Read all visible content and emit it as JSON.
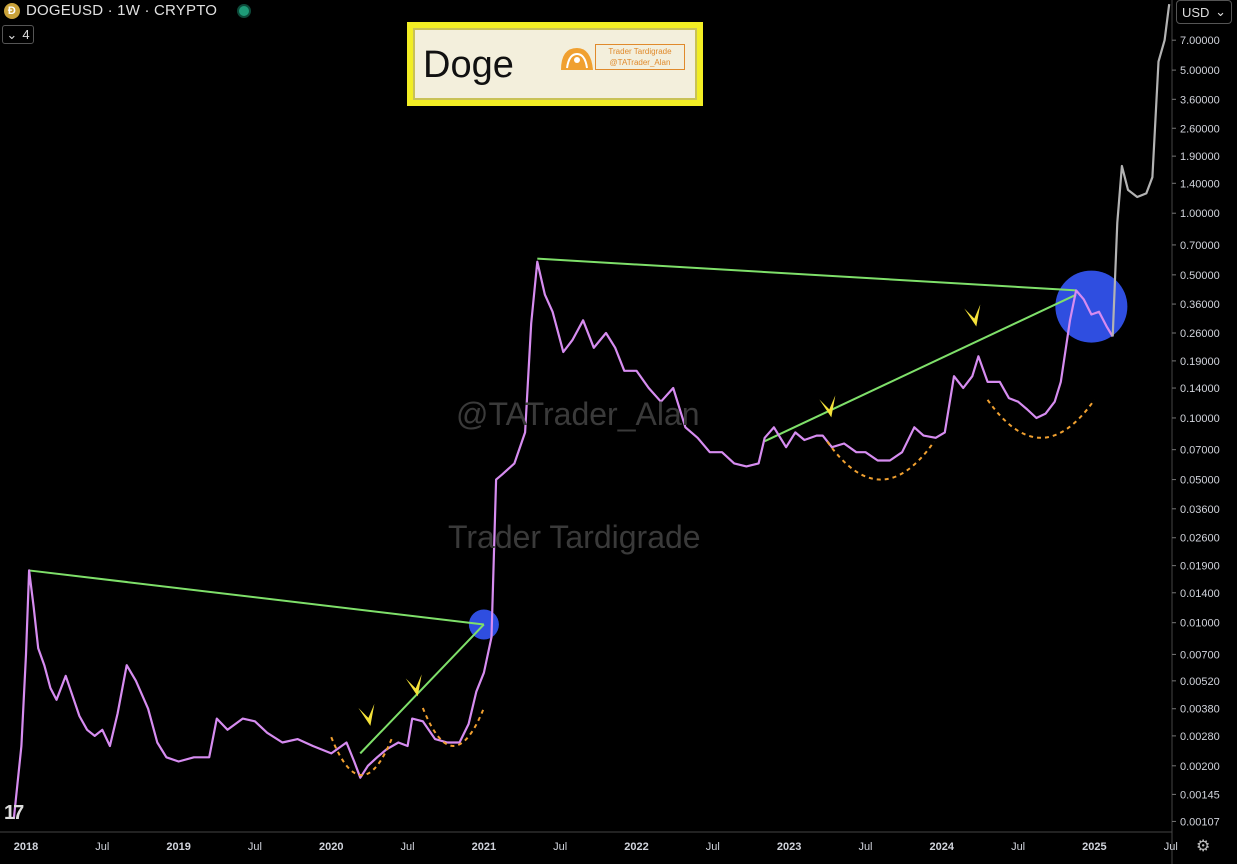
{
  "header": {
    "title": "DOGEUSD · 1W · CRYPTO",
    "collapse_count": "4",
    "currency": "USD"
  },
  "logo": {
    "title": "Doge",
    "tag_line1": "Trader Tardigrade",
    "tag_line2": "@TATrader_Alan"
  },
  "watermarks": {
    "handle": "@TATrader_Alan",
    "name": "Trader Tardigrade"
  },
  "badge": "17",
  "colors": {
    "price": "#d68cf0",
    "projection": "#b3b3b3",
    "trend": "#7fe06a",
    "arc": "#f0a030",
    "circle": "#2f4ee0",
    "arrow": "#f5e23a"
  },
  "chart_data": {
    "type": "line",
    "scale": "log",
    "ylim": [
      0.00095,
      11
    ],
    "xlim": [
      2018.0,
      2025.6
    ],
    "y_ticks": [
      "7.00000",
      "5.00000",
      "3.60000",
      "2.60000",
      "1.90000",
      "1.40000",
      "1.00000",
      "0.70000",
      "0.50000",
      "0.36000",
      "0.26000",
      "0.19000",
      "0.14000",
      "0.10000",
      "0.07000",
      "0.05000",
      "0.03600",
      "0.02600",
      "0.01900",
      "0.01400",
      "0.01000",
      "0.00700",
      "0.00520",
      "0.00380",
      "0.00280",
      "0.00200",
      "0.00145",
      "0.00107"
    ],
    "x_ticks": [
      {
        "label": "2018",
        "x": 2018.0,
        "bold": true
      },
      {
        "label": "Jul",
        "x": 2018.5,
        "bold": false
      },
      {
        "label": "2019",
        "x": 2019.0,
        "bold": true
      },
      {
        "label": "Jul",
        "x": 2019.5,
        "bold": false
      },
      {
        "label": "2020",
        "x": 2020.0,
        "bold": true
      },
      {
        "label": "Jul",
        "x": 2020.5,
        "bold": false
      },
      {
        "label": "2021",
        "x": 2021.0,
        "bold": true
      },
      {
        "label": "Jul",
        "x": 2021.5,
        "bold": false
      },
      {
        "label": "2022",
        "x": 2022.0,
        "bold": true
      },
      {
        "label": "Jul",
        "x": 2022.5,
        "bold": false
      },
      {
        "label": "2023",
        "x": 2023.0,
        "bold": true
      },
      {
        "label": "Jul",
        "x": 2023.5,
        "bold": false
      },
      {
        "label": "2024",
        "x": 2024.0,
        "bold": true
      },
      {
        "label": "Jul",
        "x": 2024.5,
        "bold": false
      },
      {
        "label": "2025",
        "x": 2025.0,
        "bold": true
      },
      {
        "label": "Jul",
        "x": 2025.5,
        "bold": false
      }
    ],
    "series": [
      {
        "values": [
          [
            2017.92,
            0.0011
          ],
          [
            2017.97,
            0.0025
          ],
          [
            2018.0,
            0.007
          ],
          [
            2018.02,
            0.018
          ],
          [
            2018.05,
            0.012
          ],
          [
            2018.08,
            0.0075
          ],
          [
            2018.12,
            0.0062
          ],
          [
            2018.16,
            0.0048
          ],
          [
            2018.2,
            0.0042
          ],
          [
            2018.26,
            0.0055
          ],
          [
            2018.3,
            0.0045
          ],
          [
            2018.35,
            0.0035
          ],
          [
            2018.4,
            0.003
          ],
          [
            2018.45,
            0.0028
          ],
          [
            2018.5,
            0.003
          ],
          [
            2018.55,
            0.0025
          ],
          [
            2018.6,
            0.0036
          ],
          [
            2018.66,
            0.0062
          ],
          [
            2018.72,
            0.0052
          ],
          [
            2018.8,
            0.0038
          ],
          [
            2018.86,
            0.0026
          ],
          [
            2018.92,
            0.0022
          ],
          [
            2019.0,
            0.0021
          ],
          [
            2019.1,
            0.0022
          ],
          [
            2019.2,
            0.0022
          ],
          [
            2019.25,
            0.0034
          ],
          [
            2019.32,
            0.003
          ],
          [
            2019.42,
            0.0034
          ],
          [
            2019.5,
            0.0033
          ],
          [
            2019.58,
            0.0029
          ],
          [
            2019.68,
            0.0026
          ],
          [
            2019.78,
            0.0027
          ],
          [
            2019.88,
            0.0025
          ],
          [
            2020.0,
            0.0023
          ],
          [
            2020.1,
            0.0026
          ],
          [
            2020.15,
            0.0021
          ],
          [
            2020.19,
            0.00175
          ],
          [
            2020.24,
            0.002
          ],
          [
            2020.3,
            0.0022
          ],
          [
            2020.36,
            0.0024
          ],
          [
            2020.44,
            0.0026
          ],
          [
            2020.5,
            0.0025
          ],
          [
            2020.53,
            0.0034
          ],
          [
            2020.6,
            0.0033
          ],
          [
            2020.68,
            0.0027
          ],
          [
            2020.76,
            0.0026
          ],
          [
            2020.84,
            0.0026
          ],
          [
            2020.9,
            0.0032
          ],
          [
            2020.95,
            0.0046
          ],
          [
            2021.0,
            0.0057
          ],
          [
            2021.05,
            0.0085
          ],
          [
            2021.08,
            0.05
          ],
          [
            2021.12,
            0.053
          ],
          [
            2021.2,
            0.06
          ],
          [
            2021.27,
            0.085
          ],
          [
            2021.31,
            0.29
          ],
          [
            2021.35,
            0.58
          ],
          [
            2021.4,
            0.4
          ],
          [
            2021.45,
            0.33
          ],
          [
            2021.52,
            0.21
          ],
          [
            2021.58,
            0.24
          ],
          [
            2021.65,
            0.3
          ],
          [
            2021.72,
            0.22
          ],
          [
            2021.8,
            0.26
          ],
          [
            2021.86,
            0.22
          ],
          [
            2021.92,
            0.17
          ],
          [
            2022.0,
            0.17
          ],
          [
            2022.08,
            0.14
          ],
          [
            2022.16,
            0.12
          ],
          [
            2022.24,
            0.14
          ],
          [
            2022.32,
            0.09
          ],
          [
            2022.4,
            0.08
          ],
          [
            2022.48,
            0.068
          ],
          [
            2022.56,
            0.068
          ],
          [
            2022.64,
            0.06
          ],
          [
            2022.72,
            0.058
          ],
          [
            2022.8,
            0.06
          ],
          [
            2022.84,
            0.08
          ],
          [
            2022.9,
            0.09
          ],
          [
            2022.98,
            0.072
          ],
          [
            2023.04,
            0.085
          ],
          [
            2023.1,
            0.078
          ],
          [
            2023.18,
            0.082
          ],
          [
            2023.22,
            0.082
          ],
          [
            2023.28,
            0.072
          ],
          [
            2023.36,
            0.075
          ],
          [
            2023.44,
            0.068
          ],
          [
            2023.5,
            0.068
          ],
          [
            2023.58,
            0.062
          ],
          [
            2023.66,
            0.062
          ],
          [
            2023.74,
            0.068
          ],
          [
            2023.82,
            0.09
          ],
          [
            2023.88,
            0.082
          ],
          [
            2023.96,
            0.08
          ],
          [
            2024.02,
            0.085
          ],
          [
            2024.08,
            0.16
          ],
          [
            2024.14,
            0.14
          ],
          [
            2024.2,
            0.16
          ],
          [
            2024.24,
            0.2
          ],
          [
            2024.3,
            0.15
          ],
          [
            2024.38,
            0.15
          ],
          [
            2024.44,
            0.125
          ],
          [
            2024.5,
            0.12
          ],
          [
            2024.56,
            0.11
          ],
          [
            2024.62,
            0.1
          ],
          [
            2024.68,
            0.105
          ],
          [
            2024.74,
            0.12
          ],
          [
            2024.78,
            0.15
          ],
          [
            2024.84,
            0.3
          ],
          [
            2024.88,
            0.42
          ],
          [
            2024.93,
            0.38
          ],
          [
            2024.98,
            0.32
          ],
          [
            2025.03,
            0.33
          ],
          [
            2025.08,
            0.28
          ],
          [
            2025.12,
            0.25
          ]
        ]
      },
      {
        "values": [
          [
            2025.12,
            0.25
          ],
          [
            2025.15,
            0.9
          ],
          [
            2025.18,
            1.7
          ],
          [
            2025.22,
            1.3
          ],
          [
            2025.28,
            1.2
          ],
          [
            2025.34,
            1.25
          ],
          [
            2025.38,
            1.5
          ],
          [
            2025.42,
            5.5
          ],
          [
            2025.46,
            7.0
          ],
          [
            2025.49,
            10.5
          ]
        ]
      }
    ],
    "trendlines": [
      [
        [
          2018.02,
          0.018
        ],
        [
          2021.0,
          0.0098
        ]
      ],
      [
        [
          2020.19,
          0.0023
        ],
        [
          2021.0,
          0.0098
        ]
      ],
      [
        [
          2021.35,
          0.6
        ],
        [
          2024.88,
          0.42
        ]
      ],
      [
        [
          2022.84,
          0.077
        ],
        [
          2024.88,
          0.4
        ]
      ]
    ],
    "circles": [
      {
        "x": 2021.0,
        "y": 0.0098,
        "r": 15
      },
      {
        "x": 2024.98,
        "y": 0.35,
        "r": 36
      }
    ],
    "arrows": [
      [
        2020.23,
        0.0028
      ],
      [
        2020.54,
        0.0039
      ],
      [
        2023.25,
        0.09
      ],
      [
        2024.2,
        0.25
      ]
    ],
    "arcs": [
      [
        2020.0,
        2020.4,
        0.0018
      ],
      [
        2020.6,
        2021.0,
        0.0025
      ],
      [
        2023.25,
        2023.95,
        0.05
      ],
      [
        2024.3,
        2025.0,
        0.08
      ]
    ]
  }
}
